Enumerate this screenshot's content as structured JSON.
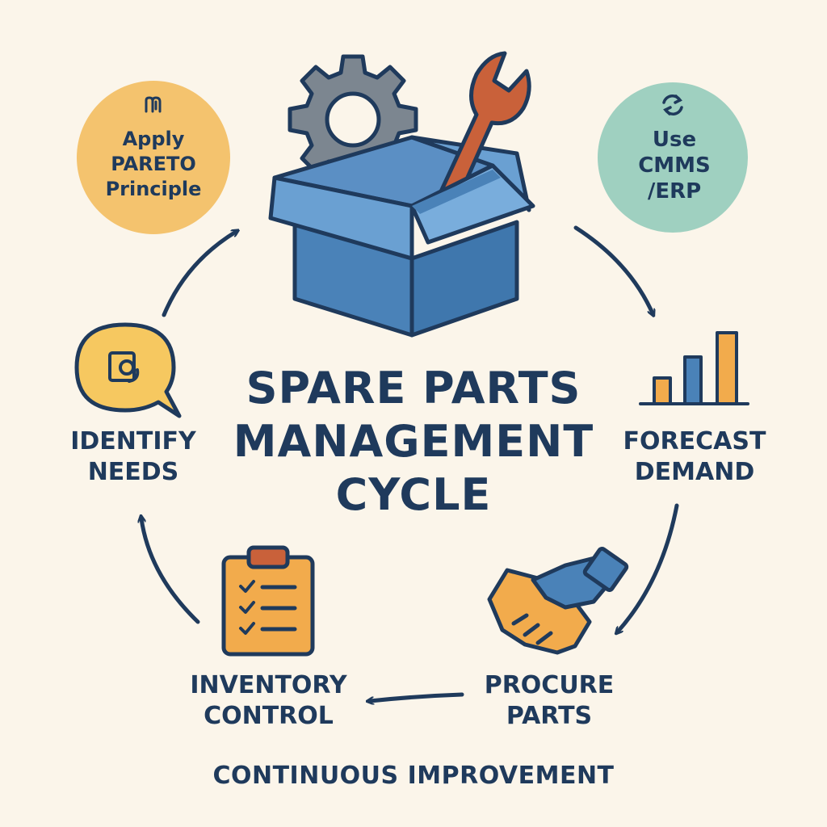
{
  "title": {
    "line1": "SPARE PARTS",
    "line2": "MANAGEMENT",
    "line3": "CYCLE"
  },
  "steps": {
    "identify": {
      "line1": "IDENTIFY",
      "line2": "NEEDS",
      "icon": "speech-bubble-gear-icon"
    },
    "forecast": {
      "line1": "FORECAST",
      "line2": "DEMAND",
      "icon": "bar-chart-icon"
    },
    "procure": {
      "line1": "PROCURE",
      "line2": "PARTS",
      "icon": "handshake-icon"
    },
    "inventory": {
      "line1": "INVENTORY",
      "line2": "CONTROL",
      "icon": "clipboard-checklist-icon"
    }
  },
  "tips": {
    "pareto": {
      "line1": "Apply",
      "line2": "PARETO",
      "line3": "Principle",
      "icon": "pareto-glyph-icon"
    },
    "cmms": {
      "line1": "Use",
      "line2": "CMMS",
      "line3": "/ERP",
      "icon": "sync-icon"
    }
  },
  "footer": "CONTINUOUS IMPROVEMENT",
  "colors": {
    "background": "#fbf5ea",
    "navy": "#1f3a5c",
    "box_blue": "#4a82b8",
    "orange": "#f2ab4c",
    "wrench": "#c9613a",
    "gear_gray": "#7c8690",
    "teal": "#9fd0c0",
    "pareto_bubble": "#f4c36e",
    "speech_yellow": "#f6c860"
  }
}
